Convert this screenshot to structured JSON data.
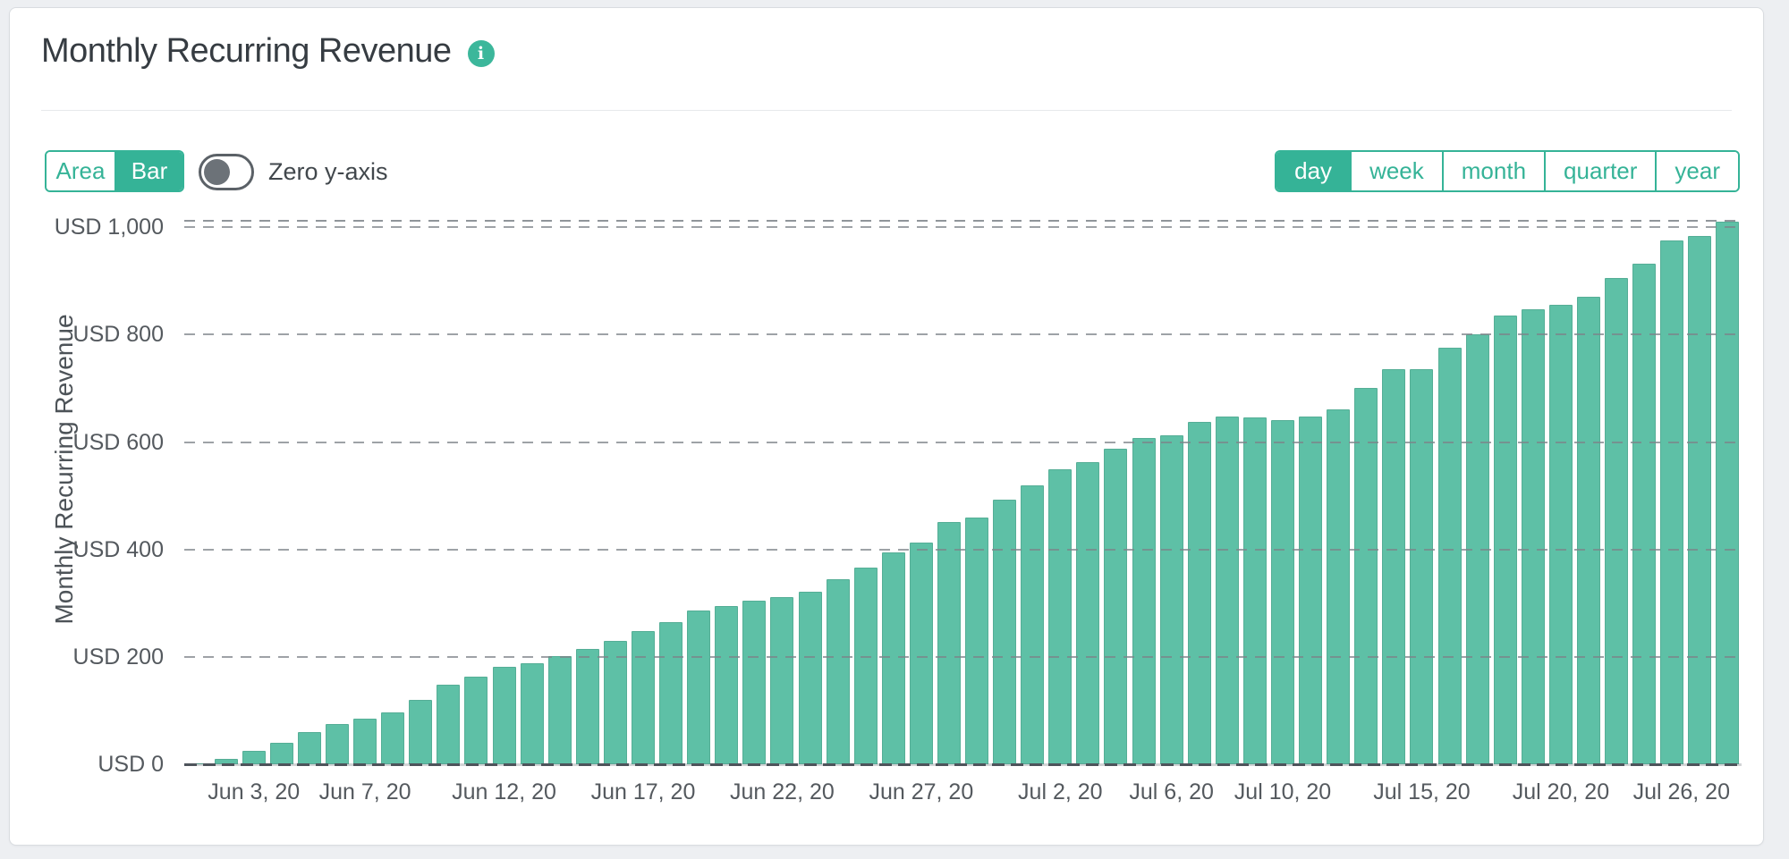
{
  "header": {
    "title": "Monthly Recurring Revenue"
  },
  "controls": {
    "chart_types": [
      "Area",
      "Bar"
    ],
    "selected_chart_type": "Bar",
    "zero_y_axis_label": "Zero y-axis",
    "zero_y_axis_enabled": false,
    "ranges": [
      "day",
      "week",
      "month",
      "quarter",
      "year"
    ],
    "selected_range": "day"
  },
  "chart_data": {
    "type": "bar",
    "title": "Monthly Recurring Revenue",
    "ylabel": "Monthly Recurring Revenue",
    "xlabel": "",
    "currency": "USD",
    "categories": [
      "Jun 1",
      "Jun 2",
      "Jun 3",
      "Jun 4",
      "Jun 5",
      "Jun 6",
      "Jun 7",
      "Jun 8",
      "Jun 9",
      "Jun 10",
      "Jun 11",
      "Jun 12",
      "Jun 13",
      "Jun 14",
      "Jun 15",
      "Jun 16",
      "Jun 17",
      "Jun 18",
      "Jun 19",
      "Jun 20",
      "Jun 21",
      "Jun 22",
      "Jun 23",
      "Jun 24",
      "Jun 25",
      "Jun 26",
      "Jun 27",
      "Jun 28",
      "Jun 29",
      "Jun 30",
      "Jul 1",
      "Jul 2",
      "Jul 3",
      "Jul 4",
      "Jul 5",
      "Jul 6",
      "Jul 7",
      "Jul 8",
      "Jul 9",
      "Jul 10",
      "Jul 11",
      "Jul 12",
      "Jul 13",
      "Jul 14",
      "Jul 15",
      "Jul 16",
      "Jul 17",
      "Jul 18",
      "Jul 19",
      "Jul 20",
      "Jul 21",
      "Jul 22",
      "Jul 23",
      "Jul 24",
      "Jul 25",
      "Jul 26"
    ],
    "values": [
      2,
      10,
      25,
      40,
      60,
      75,
      85,
      97,
      120,
      148,
      163,
      181,
      188,
      201,
      215,
      230,
      248,
      265,
      287,
      295,
      305,
      312,
      322,
      345,
      367,
      395,
      413,
      451,
      460,
      492,
      520,
      549,
      562,
      588,
      607,
      613,
      638,
      648,
      646,
      640,
      648,
      660,
      701,
      736,
      736,
      775,
      800,
      836,
      848,
      856,
      870,
      906,
      932,
      975,
      984,
      1010
    ],
    "y_ticks": [
      {
        "value": 0,
        "label": "USD 0"
      },
      {
        "value": 200,
        "label": "USD 200"
      },
      {
        "value": 400,
        "label": "USD 400"
      },
      {
        "value": 600,
        "label": "USD 600"
      },
      {
        "value": 800,
        "label": "USD 800"
      },
      {
        "value": 1000,
        "label": "USD 1,000"
      }
    ],
    "x_ticks": [
      {
        "index": 2,
        "label": "Jun 3, 20"
      },
      {
        "index": 6,
        "label": "Jun 7, 20"
      },
      {
        "index": 11,
        "label": "Jun 12, 20"
      },
      {
        "index": 16,
        "label": "Jun 17, 20"
      },
      {
        "index": 21,
        "label": "Jun 22, 20"
      },
      {
        "index": 26,
        "label": "Jun 27, 20"
      },
      {
        "index": 31,
        "label": "Jul 2, 20"
      },
      {
        "index": 35,
        "label": "Jul 6, 20"
      },
      {
        "index": 39,
        "label": "Jul 10, 20"
      },
      {
        "index": 44,
        "label": "Jul 15, 20"
      },
      {
        "index": 49,
        "label": "Jul 20, 20"
      },
      {
        "index": 55,
        "label": "Jul 26, 20"
      }
    ],
    "ylim": [
      0,
      1012
    ],
    "grid": "dashed-horizontal",
    "legend": "none",
    "top_boundary_line": true,
    "colors": {
      "bar": "#5ec0a6",
      "accent": "#35b397",
      "grid": "#7d8389",
      "zero_line": "#4e545b",
      "info_icon": "#3cb79b"
    }
  }
}
